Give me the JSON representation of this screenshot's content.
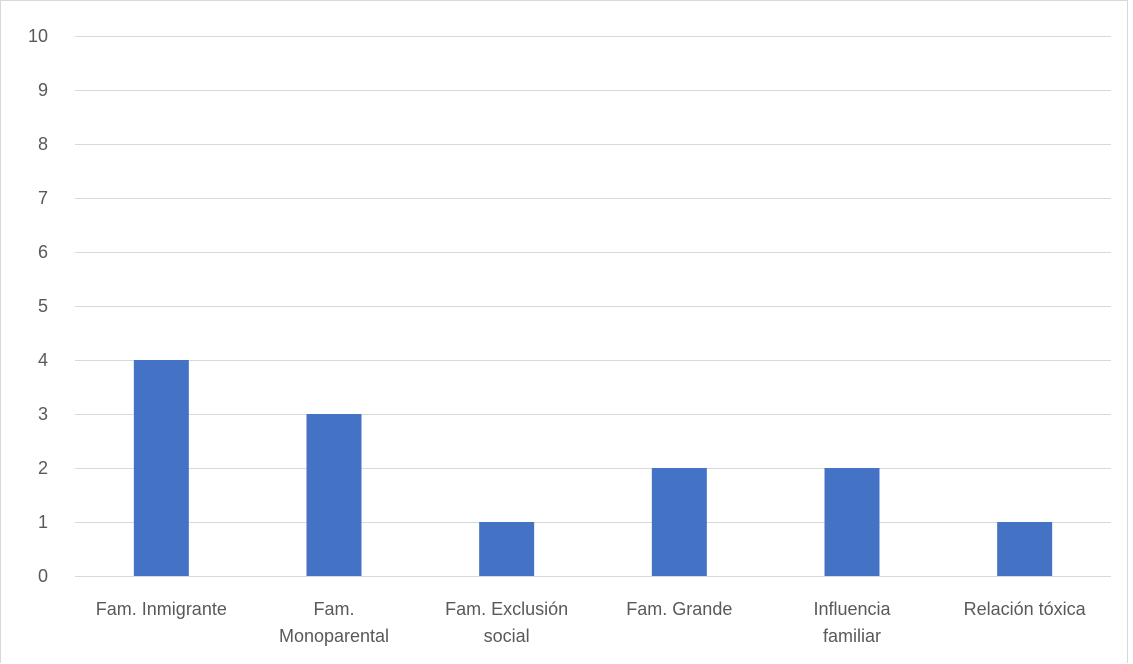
{
  "chart_data": {
    "type": "bar",
    "title": "",
    "xlabel": "",
    "ylabel": "",
    "categories": [
      [
        "Fam. Inmigrante"
      ],
      [
        "Fam.",
        "Monoparental"
      ],
      [
        "Fam. Exclusión",
        "social"
      ],
      [
        "Fam. Grande"
      ],
      [
        "Influencia",
        "familiar"
      ],
      [
        "Relación tóxica"
      ]
    ],
    "values": [
      4,
      3,
      1,
      2,
      2,
      1
    ],
    "ylim": [
      0,
      10
    ],
    "yticks": [
      0,
      1,
      2,
      3,
      4,
      5,
      6,
      7,
      8,
      9,
      10
    ],
    "grid": true,
    "legend": "none",
    "bar_color": "#4472c4",
    "grid_color": "#d9d9d9",
    "text_color": "#595959"
  }
}
